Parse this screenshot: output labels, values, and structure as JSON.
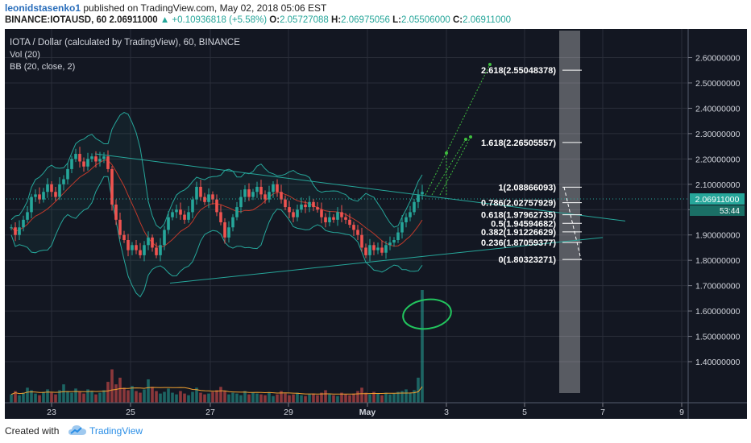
{
  "header": {
    "author": "leonidstasenko1",
    "published_text": "published on TradingView.com, May 02, 2018 05:06 EST",
    "symbol": "BINANCE:IOTAUSD, 60",
    "last": "2.06911000",
    "change": "▲ +0.10936818 (+5.58%)",
    "o_label": "O:",
    "o_value": "2.05727088",
    "h_label": "H:",
    "h_value": "2.06975056",
    "l_label": "L:",
    "l_value": "2.05506000",
    "c_label": "C:",
    "c_value": "2.06911000"
  },
  "legend": {
    "title": "IOTA / Dollar (calculated by TradingView), 60, BINANCE",
    "vol": "Vol (20)",
    "bb": "BB (20, close, 2)"
  },
  "price_tag": {
    "value": "2.06911000",
    "countdown": "53:44"
  },
  "footer": {
    "created_with": "Created with",
    "brand": "TradingView"
  },
  "colors": {
    "background": "#131722",
    "up": "#26a69a",
    "down": "#ef5350",
    "fib": "#ffffff",
    "trendline": "#26a69a",
    "annotation": "#22c55e"
  },
  "chart_data": {
    "type": "candlestick",
    "x_ticks": [
      "23",
      "25",
      "27",
      "29",
      "May",
      "3",
      "5",
      "7",
      "9"
    ],
    "y_ticks": [
      "2.60000000",
      "2.50000000",
      "2.40000000",
      "2.30000000",
      "2.20000000",
      "2.10000000",
      "2.00000000",
      "1.90000000",
      "1.80000000",
      "1.70000000",
      "1.60000000",
      "1.50000000",
      "1.40000000"
    ],
    "ylim": [
      1.36,
      2.63
    ],
    "fib_levels": [
      {
        "label": "0(1.80323271)",
        "value": 1.80323271
      },
      {
        "label": "0.236(1.87059377)",
        "value": 1.87059377
      },
      {
        "label": "0.382(1.91226629)",
        "value": 1.91226629
      },
      {
        "label": "0.5(1.94594682)",
        "value": 1.94594682
      },
      {
        "label": "0.618(1.97962735)",
        "value": 1.97962735
      },
      {
        "label": "0.786(2.02757929)",
        "value": 2.02757929
      },
      {
        "label": "1(2.08866093)",
        "value": 2.08866093
      },
      {
        "label": "1.618(2.26505557)",
        "value": 2.26505557
      },
      {
        "label": "2.618(2.55048378)",
        "value": 2.55048378
      }
    ],
    "close_series": [
      1.93,
      1.9,
      1.93,
      1.96,
      1.99,
      2.05,
      2.06,
      2.04,
      2.07,
      2.1,
      2.07,
      2.05,
      2.1,
      2.12,
      2.16,
      2.2,
      2.22,
      2.19,
      2.17,
      2.2,
      2.21,
      2.19,
      2.2,
      2.21,
      2.16,
      2.02,
      1.96,
      1.9,
      1.88,
      1.84,
      1.86,
      1.84,
      1.82,
      1.86,
      1.89,
      1.85,
      1.82,
      1.86,
      1.92,
      1.97,
      1.99,
      2.0,
      1.98,
      1.96,
      1.99,
      2.04,
      2.09,
      2.05,
      2.03,
      2.06,
      2.04,
      1.99,
      1.95,
      1.89,
      1.93,
      1.97,
      2.01,
      2.05,
      2.08,
      2.05,
      2.07,
      2.09,
      2.06,
      2.04,
      2.07,
      2.1,
      2.07,
      2.04,
      2.01,
      1.99,
      1.97,
      2.0,
      2.02,
      2.01,
      2.03,
      2.01,
      2.0,
      1.97,
      1.95,
      1.97,
      1.96,
      1.99,
      1.97,
      1.96,
      1.94,
      1.92,
      1.9,
      1.85,
      1.82,
      1.86,
      1.84,
      1.85,
      1.83,
      1.86,
      1.87,
      1.88,
      1.91,
      1.95,
      1.97,
      1.99,
      2.03,
      2.06,
      2.07
    ],
    "volume": [
      10,
      14,
      9,
      12,
      18,
      15,
      11,
      9,
      13,
      16,
      12,
      10,
      15,
      22,
      14,
      12,
      17,
      13,
      11,
      16,
      14,
      10,
      12,
      15,
      25,
      40,
      22,
      30,
      18,
      15,
      20,
      14,
      12,
      16,
      28,
      19,
      14,
      11,
      13,
      17,
      12,
      10,
      14,
      11,
      9,
      13,
      18,
      12,
      10,
      11,
      13,
      15,
      19,
      14,
      10,
      12,
      11,
      9,
      14,
      10,
      12,
      11,
      10,
      9,
      12,
      8,
      10,
      14,
      11,
      9,
      10,
      12,
      9,
      8,
      10,
      11,
      9,
      12,
      15,
      10,
      9,
      8,
      12,
      10,
      9,
      11,
      14,
      18,
      12,
      10,
      13,
      11,
      9,
      12,
      10,
      11,
      13,
      14,
      16,
      12,
      15,
      30,
      135
    ],
    "upper_trendline": [
      [
        "Apr 23 20:00",
        2.22
      ],
      [
        "May 02 05:00",
        2.06
      ],
      [
        "May 07 06:00",
        1.955
      ]
    ],
    "lower_trendline": [
      [
        "Apr 25 21:00",
        1.71
      ],
      [
        "May 06 19:00",
        1.89
      ]
    ]
  }
}
